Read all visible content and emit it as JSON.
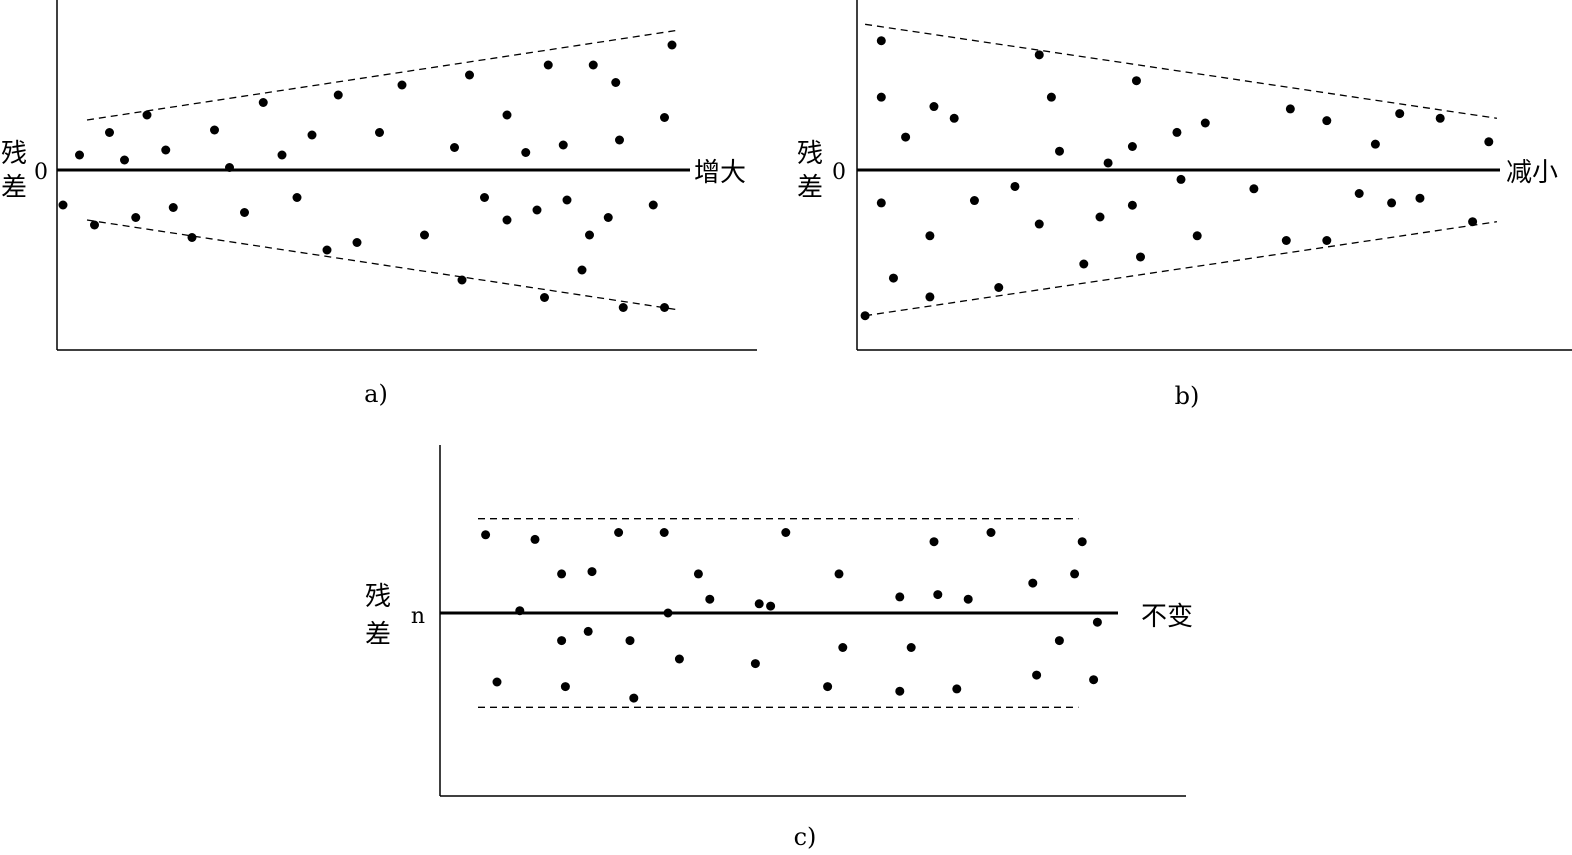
{
  "chart_data": [
    {
      "type": "scatter",
      "caption": "a)",
      "ylabel": "残差",
      "baseline_label": "0",
      "trend_label": "增大",
      "band": {
        "start": [
          0.4,
          1.0
        ],
        "end": [
          8.3,
          2.8
        ]
      },
      "points": [
        [
          0.08,
          -0.7
        ],
        [
          0.3,
          0.3
        ],
        [
          0.5,
          -1.1
        ],
        [
          0.7,
          0.75
        ],
        [
          0.9,
          0.2
        ],
        [
          1.05,
          -0.95
        ],
        [
          1.2,
          1.1
        ],
        [
          1.45,
          0.4
        ],
        [
          1.55,
          -0.75
        ],
        [
          1.8,
          -1.35
        ],
        [
          2.1,
          0.8
        ],
        [
          2.3,
          0.05
        ],
        [
          2.5,
          -0.85
        ],
        [
          2.75,
          1.35
        ],
        [
          3.0,
          0.3
        ],
        [
          3.2,
          -0.55
        ],
        [
          3.4,
          0.7
        ],
        [
          3.6,
          -1.6
        ],
        [
          3.75,
          1.5
        ],
        [
          4.0,
          -1.45
        ],
        [
          4.3,
          0.75
        ],
        [
          4.6,
          1.7
        ],
        [
          4.9,
          -1.3
        ],
        [
          5.3,
          0.45
        ],
        [
          5.4,
          -2.2
        ],
        [
          5.5,
          1.9
        ],
        [
          5.7,
          -0.55
        ],
        [
          6.0,
          1.1
        ],
        [
          6.0,
          -1.0
        ],
        [
          6.25,
          0.35
        ],
        [
          6.4,
          -0.8
        ],
        [
          6.5,
          -2.55
        ],
        [
          6.55,
          2.1
        ],
        [
          6.75,
          0.5
        ],
        [
          6.8,
          -0.6
        ],
        [
          7.0,
          -2.0
        ],
        [
          7.1,
          -1.3
        ],
        [
          7.15,
          2.1
        ],
        [
          7.35,
          -0.95
        ],
        [
          7.45,
          1.75
        ],
        [
          7.5,
          0.6
        ],
        [
          7.55,
          -2.75
        ],
        [
          7.95,
          -0.7
        ],
        [
          8.1,
          1.05
        ],
        [
          8.1,
          -2.75
        ],
        [
          8.2,
          2.5
        ]
      ]
    },
    {
      "type": "scatter",
      "caption": "b)",
      "ylabel": "残差",
      "baseline_label": "0",
      "trend_label": "减小",
      "band": {
        "start": [
          0.1,
          3.1
        ],
        "end": [
          7.9,
          1.1
        ]
      },
      "points": [
        [
          0.1,
          -3.1
        ],
        [
          0.3,
          2.75
        ],
        [
          0.3,
          1.55
        ],
        [
          0.3,
          -0.7
        ],
        [
          0.45,
          -2.3
        ],
        [
          0.6,
          0.7
        ],
        [
          0.9,
          -1.4
        ],
        [
          0.9,
          -2.7
        ],
        [
          0.95,
          1.35
        ],
        [
          1.2,
          1.1
        ],
        [
          1.45,
          -0.65
        ],
        [
          1.75,
          -2.5
        ],
        [
          1.95,
          -0.35
        ],
        [
          2.25,
          2.45
        ],
        [
          2.25,
          -1.15
        ],
        [
          2.4,
          1.55
        ],
        [
          2.5,
          0.4
        ],
        [
          2.8,
          -2.0
        ],
        [
          3.0,
          -1.0
        ],
        [
          3.1,
          0.15
        ],
        [
          3.4,
          0.5
        ],
        [
          3.4,
          -0.75
        ],
        [
          3.45,
          1.9
        ],
        [
          3.5,
          -1.85
        ],
        [
          3.95,
          0.8
        ],
        [
          4.0,
          -0.2
        ],
        [
          4.2,
          -1.4
        ],
        [
          4.3,
          1.0
        ],
        [
          4.9,
          -0.4
        ],
        [
          5.3,
          -1.5
        ],
        [
          5.35,
          1.3
        ],
        [
          5.8,
          -1.5
        ],
        [
          5.8,
          1.05
        ],
        [
          6.2,
          -0.5
        ],
        [
          6.4,
          0.55
        ],
        [
          6.6,
          -0.7
        ],
        [
          6.7,
          1.2
        ],
        [
          6.95,
          -0.6
        ],
        [
          7.2,
          1.1
        ],
        [
          7.6,
          -1.1
        ],
        [
          7.8,
          0.6
        ]
      ]
    },
    {
      "type": "scatter",
      "caption": "c)",
      "ylabel": "残差",
      "baseline_label": "n",
      "trend_label": "不变",
      "band": {
        "start": [
          0.5,
          2.05
        ],
        "end": [
          8.4,
          2.05
        ]
      },
      "points": [
        [
          0.6,
          1.7
        ],
        [
          0.75,
          -1.5
        ],
        [
          1.05,
          0.05
        ],
        [
          1.25,
          1.6
        ],
        [
          1.6,
          0.85
        ],
        [
          1.6,
          -0.6
        ],
        [
          1.65,
          -1.6
        ],
        [
          1.95,
          -0.4
        ],
        [
          2.0,
          0.9
        ],
        [
          2.35,
          1.75
        ],
        [
          2.5,
          -0.6
        ],
        [
          2.55,
          -1.85
        ],
        [
          2.95,
          1.75
        ],
        [
          3.0,
          0.0
        ],
        [
          3.15,
          -1.0
        ],
        [
          3.4,
          0.85
        ],
        [
          3.55,
          0.3
        ],
        [
          4.15,
          -1.1
        ],
        [
          4.2,
          0.2
        ],
        [
          4.35,
          0.15
        ],
        [
          4.55,
          1.75
        ],
        [
          5.1,
          -1.6
        ],
        [
          5.25,
          0.85
        ],
        [
          5.3,
          -0.75
        ],
        [
          6.05,
          0.35
        ],
        [
          6.05,
          -1.7
        ],
        [
          6.2,
          -0.75
        ],
        [
          6.5,
          1.55
        ],
        [
          6.55,
          0.4
        ],
        [
          6.8,
          -1.65
        ],
        [
          6.95,
          0.3
        ],
        [
          7.25,
          1.75
        ],
        [
          7.8,
          0.65
        ],
        [
          7.85,
          -1.35
        ],
        [
          8.15,
          -0.6
        ],
        [
          8.35,
          0.85
        ],
        [
          8.45,
          1.55
        ],
        [
          8.6,
          -1.45
        ],
        [
          8.65,
          -0.2
        ]
      ]
    }
  ]
}
